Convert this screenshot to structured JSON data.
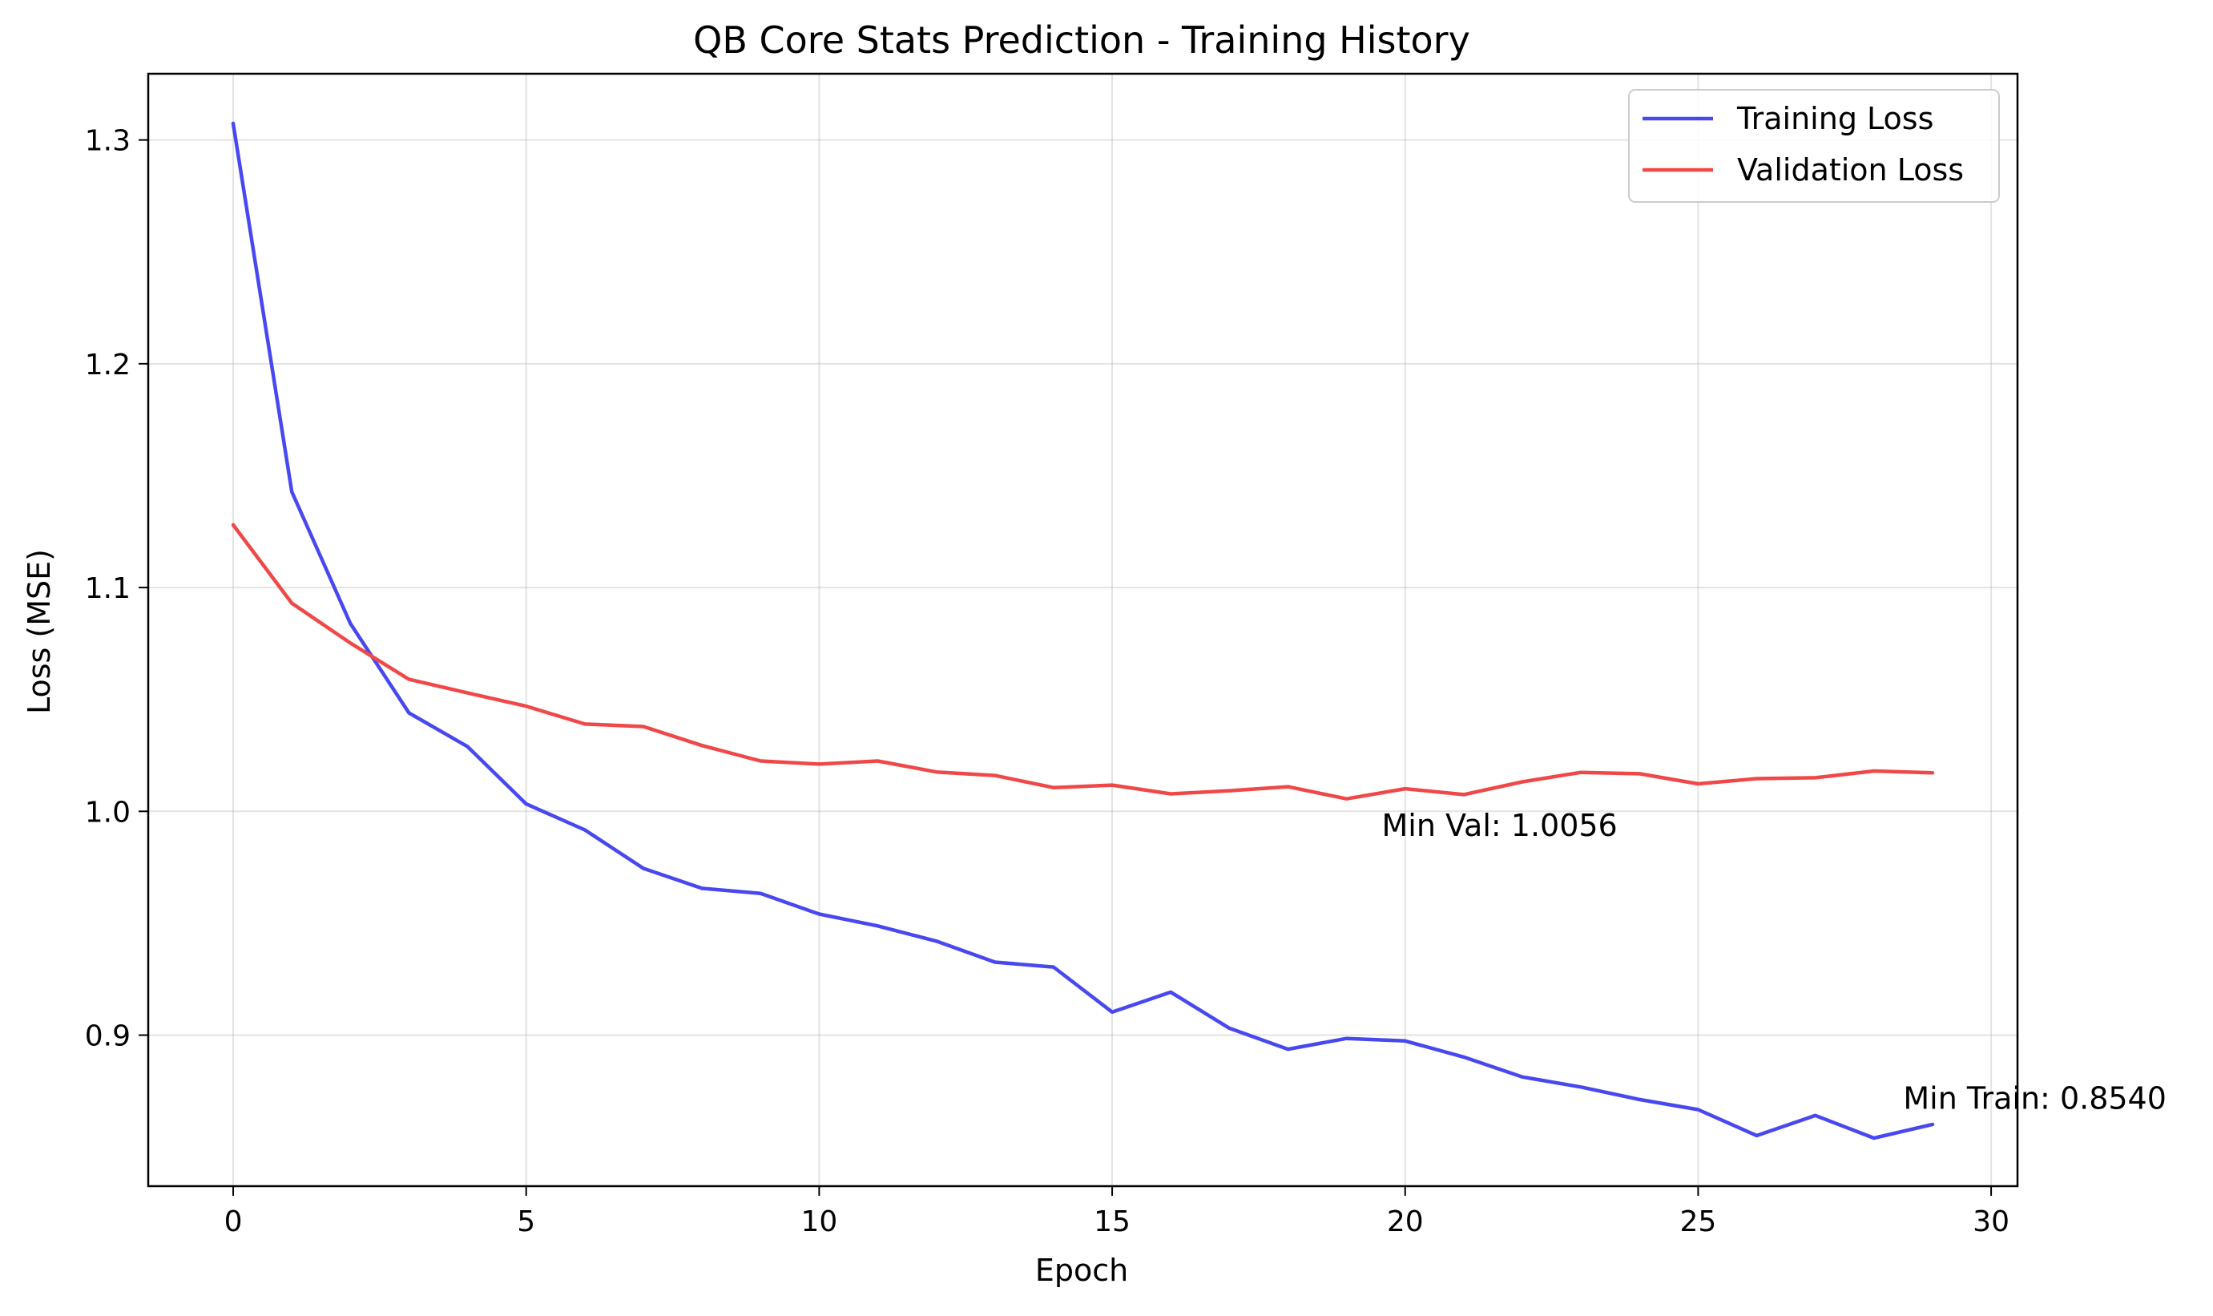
{
  "chart_data": {
    "type": "line",
    "title": "QB Core Stats Prediction - Training History",
    "xlabel": "Epoch",
    "ylabel": "Loss (MSE)",
    "xlim": [
      -1.45,
      30.45
    ],
    "ylim": [
      0.8325,
      1.3296
    ],
    "xticks": [
      0,
      5,
      10,
      15,
      20,
      25,
      30
    ],
    "yticks": [
      0.9,
      1.0,
      1.1,
      1.2,
      1.3
    ],
    "grid": true,
    "legend_position": "top-right",
    "series": [
      {
        "name": "Training Loss",
        "color": "#4848f0",
        "x": [
          0,
          1,
          2,
          3,
          4,
          5,
          6,
          7,
          8,
          9,
          10,
          11,
          12,
          13,
          14,
          15,
          16,
          17,
          18,
          19,
          20,
          21,
          22,
          23,
          24,
          25,
          26,
          27,
          28,
          29
        ],
        "values": [
          1.3074,
          1.1428,
          1.0839,
          1.044,
          1.0289,
          1.0033,
          0.9917,
          0.9745,
          0.9656,
          0.9633,
          0.9541,
          0.9488,
          0.942,
          0.9326,
          0.9304,
          0.9103,
          0.9192,
          0.9031,
          0.8937,
          0.8985,
          0.8974,
          0.8902,
          0.8813,
          0.8768,
          0.8712,
          0.8667,
          0.8551,
          0.8641,
          0.854,
          0.8601
        ]
      },
      {
        "name": "Validation Loss",
        "color": "#f04848",
        "x": [
          0,
          1,
          2,
          3,
          4,
          5,
          6,
          7,
          8,
          9,
          10,
          11,
          12,
          13,
          14,
          15,
          16,
          17,
          18,
          19,
          20,
          21,
          22,
          23,
          24,
          25,
          26,
          27,
          28,
          29
        ],
        "values": [
          1.128,
          1.093,
          1.0752,
          1.059,
          1.0529,
          1.047,
          1.039,
          1.0379,
          1.0294,
          1.0225,
          1.0211,
          1.0225,
          1.0176,
          1.016,
          1.0106,
          1.0117,
          1.0078,
          1.0092,
          1.011,
          1.0056,
          1.0101,
          1.0075,
          1.0132,
          1.0174,
          1.0168,
          1.0123,
          1.0146,
          1.015,
          1.018,
          1.0172
        ]
      }
    ],
    "annotations": [
      {
        "text": "Min Val: 1.0056",
        "x": 19.6,
        "y": 0.989
      },
      {
        "text": "Min Train: 0.8540",
        "x": 28.5,
        "y": 0.867
      }
    ]
  }
}
